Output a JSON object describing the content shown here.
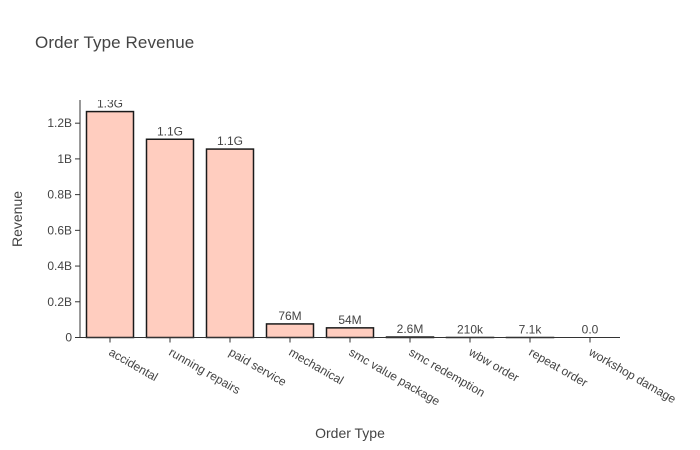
{
  "chart_data": {
    "type": "bar",
    "title": "Order Type Revenue",
    "xlabel": "Order Type",
    "ylabel": "Revenue",
    "categories": [
      "accidental",
      "running repairs",
      "paid service",
      "mechanical",
      "smc value package",
      "smc redemption",
      "wbw order",
      "repeat order",
      "workshop damage"
    ],
    "values": [
      1265000000,
      1110000000,
      1055000000,
      76000000,
      54000000,
      2600000,
      210000,
      7100,
      0
    ],
    "data_labels": [
      "1.3G",
      "1.1G",
      "1.1G",
      "76M",
      "54M",
      "2.6M",
      "210k",
      "7.1k",
      "0.0"
    ],
    "ylim": [
      0,
      1330000000
    ],
    "yticks": [
      {
        "value": 0,
        "label": "0"
      },
      {
        "value": 200000000,
        "label": "0.2B"
      },
      {
        "value": 400000000,
        "label": "0.4B"
      },
      {
        "value": 600000000,
        "label": "0.6B"
      },
      {
        "value": 800000000,
        "label": "0.8B"
      },
      {
        "value": 1000000000,
        "label": "1B"
      },
      {
        "value": 1200000000,
        "label": "1.2B"
      }
    ],
    "grid": false,
    "bar_color": "#ffcdbf",
    "bar_outline": "#1a1a1a"
  }
}
